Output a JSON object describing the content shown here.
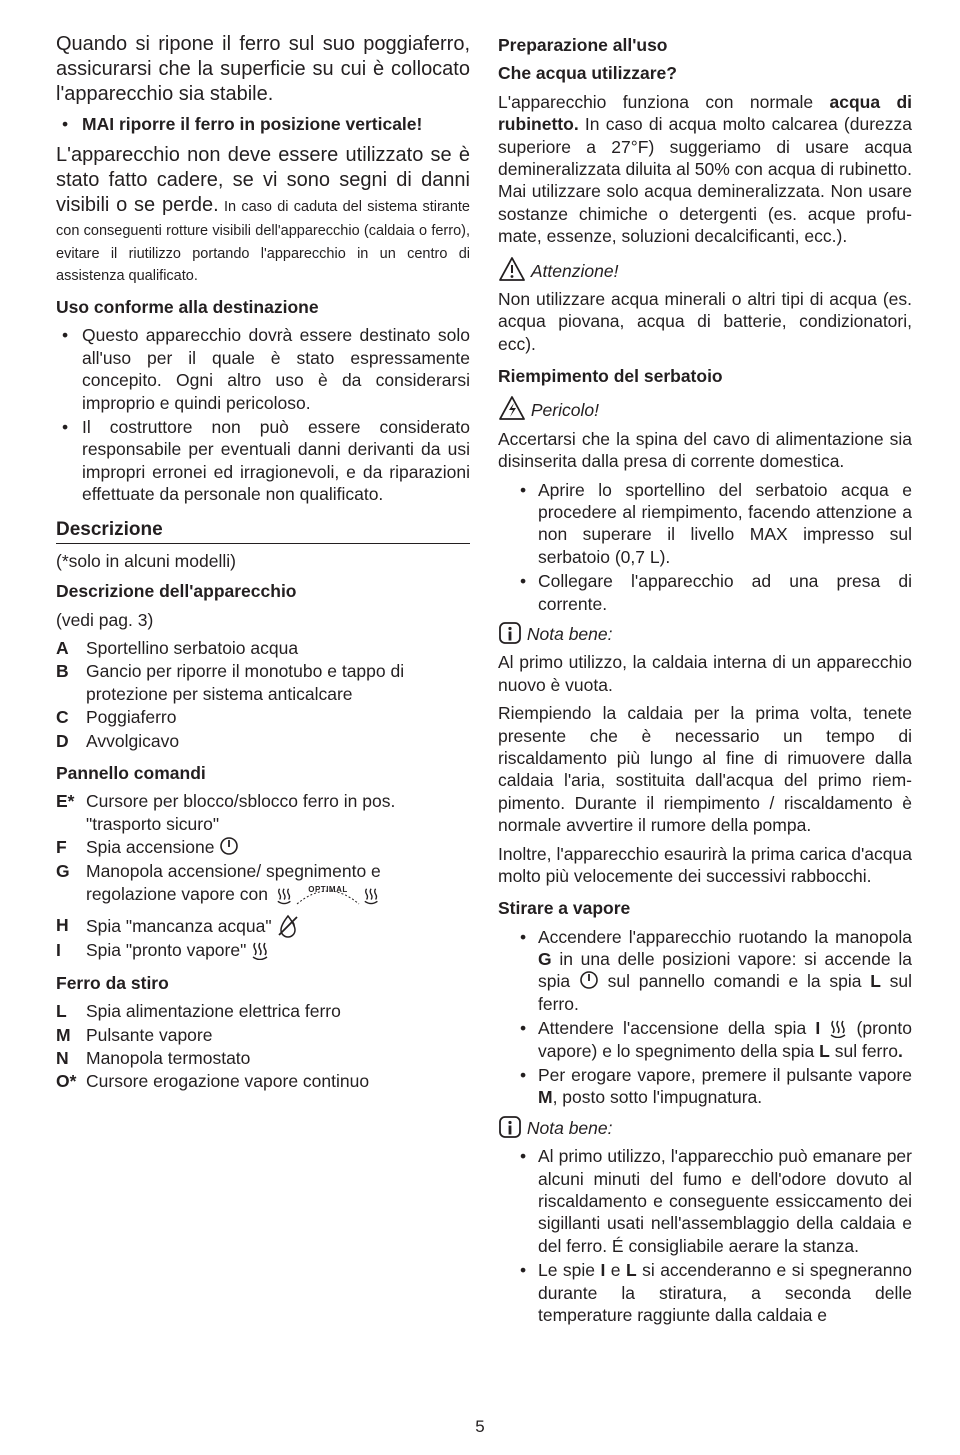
{
  "left": {
    "intro": "Quando si ripone il ferro sul suo poggia­ferro, assicurarsi che la superficie su cui è collocato l'apparecchio sia stabile.",
    "never_vertical": "MAI riporre il ferro in posizione verticale!",
    "not_use_large": "L'apparecchio non deve essere utilizzato se è stato fatto cadere, se vi sono segni di danni visibili o se perde.",
    "not_use_small": " In caso di caduta del siste­ma stirante con conseguenti rotture visibili dell'apparecchio (caldaia o ferro), evitare il riutilizzo portando l'apparecchio in un centro di assistenza qualificato.",
    "uso_title": "Uso conforme alla destinazione",
    "uso1": "Questo apparecchio dovrà essere destinato solo all'uso per il quale è stato espressamente concepito. Ogni altro uso è da considerarsi improprio e quindi pericoloso.",
    "uso2": "Il costruttore non può essere considerato responsabile per eventuali danni derivanti da usi impropri erronei ed irragio­nevoli, e da riparazioni effettuate da personale non qualifi­cato.",
    "descrizione_heading": "Descrizione",
    "solo_modelli": "(*solo in alcuni modelli)",
    "descr_app_title": "Descrizione dell'apparecchio",
    "vedi_pag": "(vedi pag. 3)",
    "apparecchio": [
      {
        "k": "A",
        "v": "Sportellino serbatoio acqua"
      },
      {
        "k": "B",
        "v": "Gancio per riporre il monotubo e tappo di protezione per sistema anticalcare"
      },
      {
        "k": "C",
        "v": "Poggiaferro"
      },
      {
        "k": "D",
        "v": "Avvolgicavo"
      }
    ],
    "pannello_title": "Pannello comandi",
    "pannello": [
      {
        "k": "E*",
        "v": "Cursore per blocco/sblocco ferro in pos. \"trasporto sicu­ro\""
      },
      {
        "k": "F",
        "v": "Spia accensione",
        "icon": "power"
      },
      {
        "k": "G",
        "v": "Manopola accensione/ spegnimento e regolazione va­pore con",
        "icon": "optimal"
      },
      {
        "k": "H",
        "v": "Spia \"mancanza acqua\"",
        "icon": "nowater"
      },
      {
        "k": "I",
        "v": "Spia \"pronto vapore\"",
        "icon": "steam"
      }
    ],
    "ferro_title": "Ferro da stiro",
    "ferro": [
      {
        "k": "L",
        "v": "Spia alimentazione elettrica ferro"
      },
      {
        "k": "M",
        "v": "Pulsante vapore"
      },
      {
        "k": "N",
        "v": "Manopola termostato"
      },
      {
        "k": "O*",
        "v": "Cursore erogazione vapore continuo"
      }
    ]
  },
  "right": {
    "prep_title": "Preparazione all'uso",
    "che_acqua": "Che acqua utilizzare?",
    "acqua_p1a": "L'apparecchio funziona con normale ",
    "acqua_p1b": "acqua di rubinetto.",
    "acqua_p1c": " In caso di acqua molto calcarea (durezza superiore a 27°F) sug­geriamo di usare acqua demineralizzata diluita al 50% con acqua di rubinetto. Mai utilizzare solo acqua demineralizzata. Non usare sostanze chimiche o detergenti (es. acque profu­mate, essenze, soluzioni decalcificanti, ecc.).",
    "attenzione": "Attenzione!",
    "att_text": "Non utilizzare acqua minerali o altri tipi di acqua (es. acqua piovana, acqua di batterie, condizionatori, ecc).",
    "riemp_title": "Riempimento del serbatoio",
    "pericolo": "Pericolo!",
    "per_text": "Accertarsi che la spina del cavo di alimentazione sia disinseri­ta dalla presa di corrente domestica.",
    "riemp_li1": "Aprire lo sportellino del serbatoio acqua e procedere al riempimento, facendo attenzione a non superare il livel­lo MAX impresso sul serbatoio (0,7 L).",
    "riemp_li2": "Collegare l'apparecchio ad una presa di corrente.",
    "nota_bene": "Nota bene:",
    "nb1_p1": "Al primo utilizzo, la caldaia interna di un apparecchio nuovo è vuota.",
    "nb1_p2": "Riempiendo la caldaia per la prima volta, tenete presente che è necessario un tempo di riscaldamento più lungo al fine di rimuovere dalla caldaia l'aria, sostituita dall'acqua del primo riem-pimento. Durante il riempimento / riscaldamento è nor­male avvertire il rumore della pompa.",
    "nb1_p3": "Inoltre, l'apparecchio esaurirà la prima carica d'acqua molto più velocemente dei successivi rabbocchi.",
    "stirare_title": "Stirare a vapore",
    "stir_li1a": "Accendere l'apparecchio ruotando la manopola ",
    "stir_li1b": " in una delle posizioni vapore: si accende la spia ",
    "stir_li1c": " sul pannel­lo comandi e la spia ",
    "stir_li1d": " sul ferro.",
    "stir_li2a": "Attendere l'accensione della spia ",
    "stir_li2b": " (pronto vapore) e lo spegnimento della spia ",
    "stir_li2c": " sul ferro",
    "stir_li3a": "Per erogare vapore, premere il pulsante vapore ",
    "stir_li3b": ", posto sotto l'impugnatura.",
    "nb2_li1": "Al primo utilizzo, l'apparecchio può emanare per alcuni minuti del fumo e dell'odore dovuto al riscaldamento e conseguente essiccamento dei sigillanti usati nell'as­semblaggio della caldaia e del ferro. É consigliabile ae­rare la stanza.",
    "nb2_li2a": "Le spie ",
    "nb2_li2b": " e ",
    "nb2_li2c": " si accenderanno e si spegneranno durante la sti­ratura, a seconda delle temperature raggiunte dalla caldaia e"
  },
  "page_number": "5",
  "letters": {
    "G": "G",
    "L": "L",
    "I": "I",
    "M": "M"
  },
  "icons": {
    "power_svg": "circle with vertical bar",
    "steam_svg": "three vertical wavy lines over arc",
    "nowater_svg": "drop crossed out",
    "warning_svg": "triangle with exclamation",
    "danger_svg": "triangle with lightning",
    "info_svg": "rounded square with i",
    "optimal_svg": "arc with OPTIMAL text and steam icons"
  }
}
